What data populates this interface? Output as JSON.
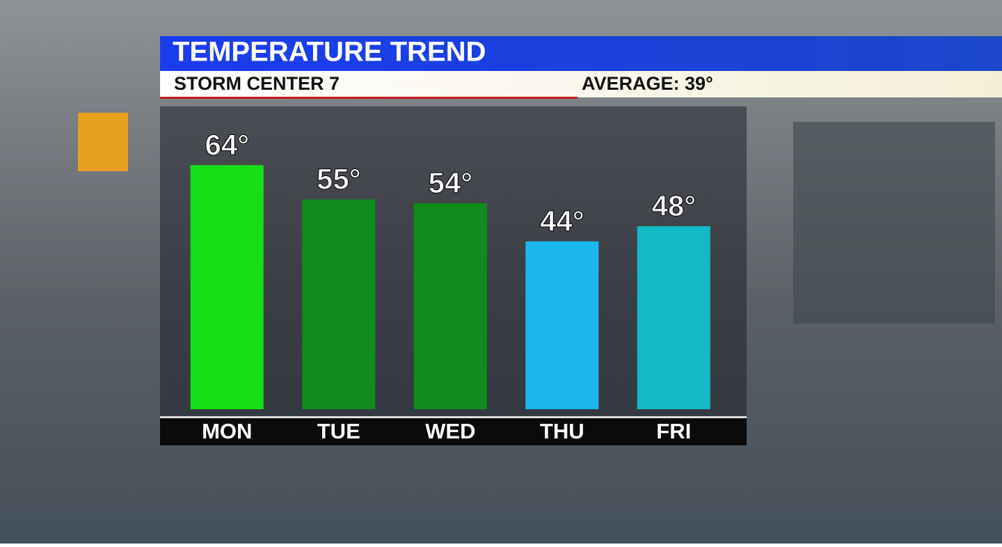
{
  "chart_data": {
    "type": "bar",
    "title": "TEMPERATURE TREND",
    "subtitle": "STORM CENTER 7",
    "annotation": "AVERAGE: 39°",
    "categories": [
      "MON",
      "TUE",
      "WED",
      "THU",
      "FRI"
    ],
    "values": [
      64,
      55,
      54,
      44,
      48
    ],
    "value_labels": [
      "64°",
      "55°",
      "54°",
      "44°",
      "48°"
    ],
    "colors": [
      "#14e014",
      "#0f8c1c",
      "#0f8c1c",
      "#1bb8ee",
      "#14b9c6"
    ]
  }
}
